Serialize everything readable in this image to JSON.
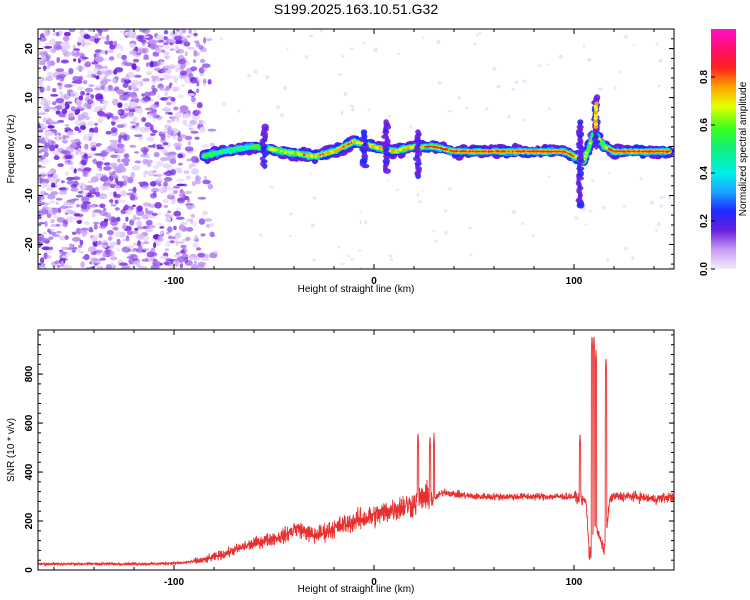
{
  "title": "S199.2025.163.10.51.G32",
  "chart_data": [
    {
      "type": "heatmap",
      "xlabel": "Height of straight line (km)",
      "ylabel": "Frequency (Hz)",
      "xlim": [
        -168,
        150
      ],
      "ylim": [
        -25,
        24
      ],
      "xticks": [
        "-100",
        "0",
        "100"
      ],
      "yticks": [
        "-20",
        "-10",
        "0",
        "10",
        "20"
      ],
      "colorbar": {
        "label": "Normalized spectral amplitude",
        "ticks": [
          "0.0",
          "0.2",
          "0.4",
          "0.6",
          "0.8"
        ],
        "range": [
          0,
          1
        ]
      },
      "ridge": {
        "description": "dominant frequency trace vs height",
        "x": [
          -85,
          -75,
          -60,
          -45,
          -30,
          -20,
          -10,
          0,
          10,
          20,
          30,
          40,
          60,
          80,
          95,
          100,
          105,
          110,
          115,
          120,
          130,
          140,
          148
        ],
        "y": [
          -2,
          -1,
          0,
          -1,
          -2,
          -1,
          1,
          0,
          -1,
          0,
          0,
          -1,
          -1,
          -1,
          -1,
          -2,
          -3,
          3,
          0,
          -1,
          -1,
          -1,
          -1
        ]
      }
    },
    {
      "type": "line",
      "xlabel": "Height of straight line (km)",
      "ylabel": "SNR (10 * v/v)",
      "xlim": [
        -168,
        150
      ],
      "ylim": [
        0,
        980
      ],
      "xticks": [
        "-100",
        "0",
        "100"
      ],
      "yticks": [
        "0",
        "200",
        "400",
        "600",
        "800"
      ],
      "color": "#e83030",
      "series": [
        {
          "x": [
            -168,
            -150,
            -130,
            -110,
            -95,
            -85,
            -75,
            -65,
            -55,
            -45,
            -38,
            -30,
            -20,
            -10,
            0,
            10,
            20,
            25,
            30,
            35,
            40,
            50,
            60,
            70,
            80,
            90,
            100,
            103,
            106,
            108,
            110,
            112,
            115,
            118,
            120,
            130,
            140,
            150
          ],
          "y": [
            25,
            25,
            25,
            25,
            30,
            40,
            65,
            95,
            120,
            140,
            170,
            140,
            170,
            200,
            220,
            250,
            270,
            300,
            290,
            320,
            310,
            300,
            300,
            300,
            300,
            300,
            300,
            290,
            280,
            40,
            200,
            150,
            80,
            290,
            300,
            300,
            290,
            300
          ]
        }
      ],
      "peaks": {
        "x": [
          -40,
          22,
          28,
          30,
          103,
          108,
          109,
          110,
          111,
          116
        ],
        "y": [
          200,
          565,
          550,
          560,
          560,
          800,
          960,
          960,
          900,
          870
        ]
      }
    }
  ]
}
